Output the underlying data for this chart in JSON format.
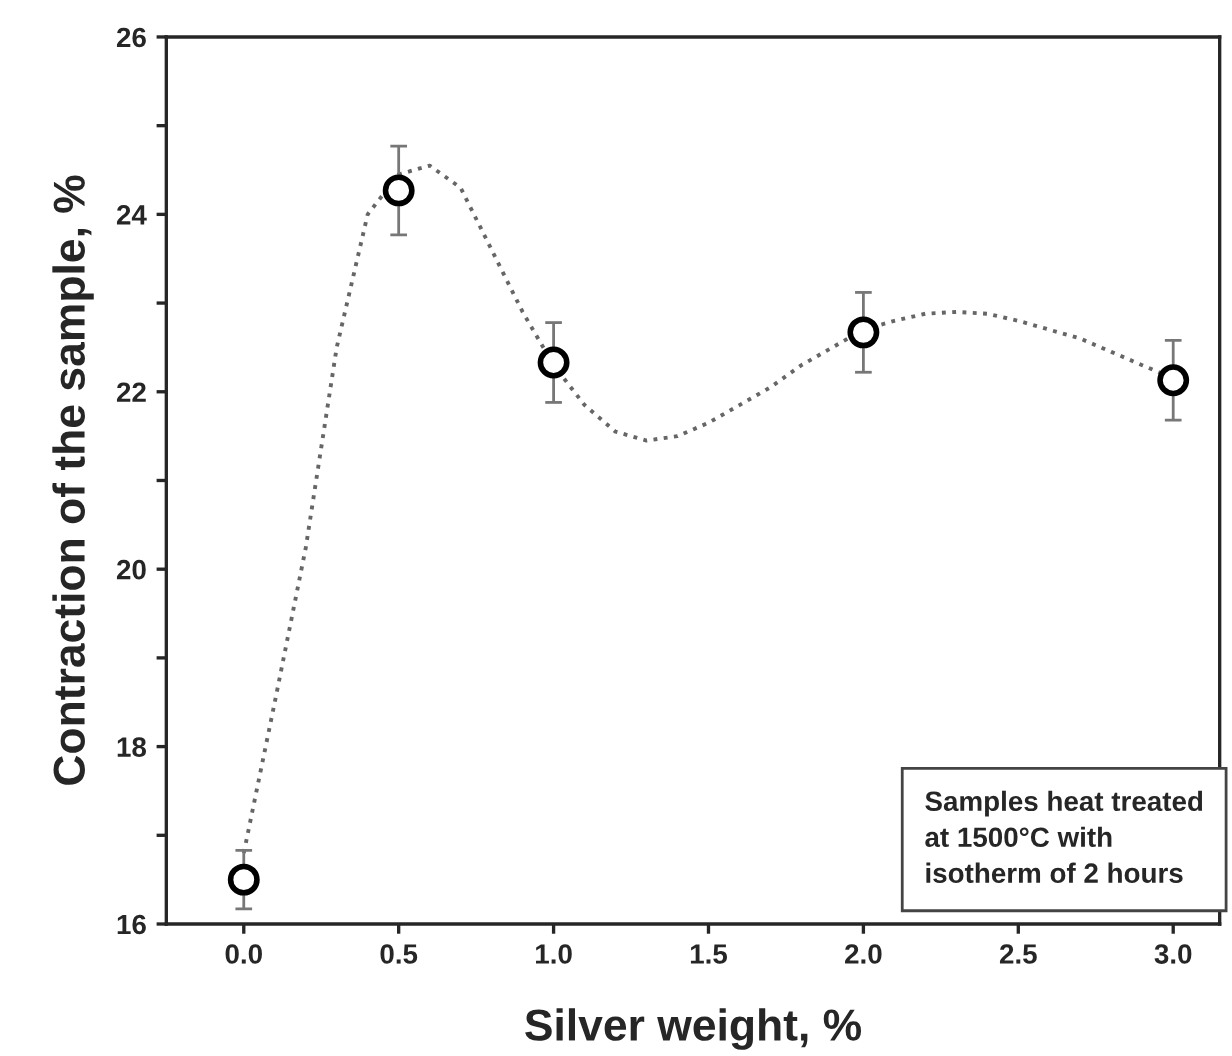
{
  "chart_data": {
    "type": "scatter",
    "xlabel": "Silver weight, %",
    "ylabel": "Contraction of the sample, %",
    "x": [
      0.0,
      0.5,
      1.0,
      2.0,
      3.0
    ],
    "series": [
      {
        "color": "#000000",
        "marker": "circle",
        "values": [
          16.5,
          24.27,
          22.33,
          22.67,
          22.13
        ],
        "errors": [
          0.33,
          0.5,
          0.45,
          0.45,
          0.45
        ]
      },
      {
        "type": "line",
        "color": "#666666",
        "marker": "none",
        "line_style": "dotted",
        "x": [
          0,
          0.1,
          0.2,
          0.3,
          0.4,
          0.5,
          0.6,
          0.7,
          0.8,
          0.9,
          1.0,
          1.1,
          1.2,
          1.3,
          1.4,
          1.5,
          1.6,
          1.7,
          1.8,
          1.9,
          2.0,
          2.1,
          2.2,
          2.3,
          2.4,
          2.5,
          2.6,
          2.7,
          2.8,
          2.9,
          3.0
        ],
        "values": [
          16.8,
          18.5,
          20.24,
          22.5,
          24.0,
          24.45,
          24.55,
          24.3,
          23.6,
          22.9,
          22.3,
          21.85,
          21.55,
          21.45,
          21.5,
          21.65,
          21.85,
          22.05,
          22.3,
          22.5,
          22.7,
          22.8,
          22.88,
          22.9,
          22.88,
          22.8,
          22.7,
          22.6,
          22.45,
          22.3,
          22.15
        ]
      }
    ],
    "xlim": [
      -0.25,
      3.15
    ],
    "ylim": [
      16,
      26
    ],
    "xticks": [
      {
        "value": 0,
        "label": "0.0"
      },
      {
        "value": 0.5,
        "label": "0.5"
      },
      {
        "value": 1,
        "label": "1.0"
      },
      {
        "value": 1.5,
        "label": "1.5"
      },
      {
        "value": 2,
        "label": "2.0"
      },
      {
        "value": 2.5,
        "label": "2.5"
      },
      {
        "value": 3,
        "label": "3.0"
      }
    ],
    "yticks": [
      16,
      {
        "value": 17,
        "label": null
      },
      18,
      {
        "value": 19,
        "label": null
      },
      20,
      {
        "value": 21,
        "label": null
      },
      22,
      {
        "value": 23,
        "label": null
      },
      24,
      {
        "value": 25,
        "label": null
      },
      26
    ],
    "grid": false,
    "legend": false,
    "annotations": [
      "Samples heat treated\nat 1500°C with\nisotherm of 2 hours"
    ]
  }
}
